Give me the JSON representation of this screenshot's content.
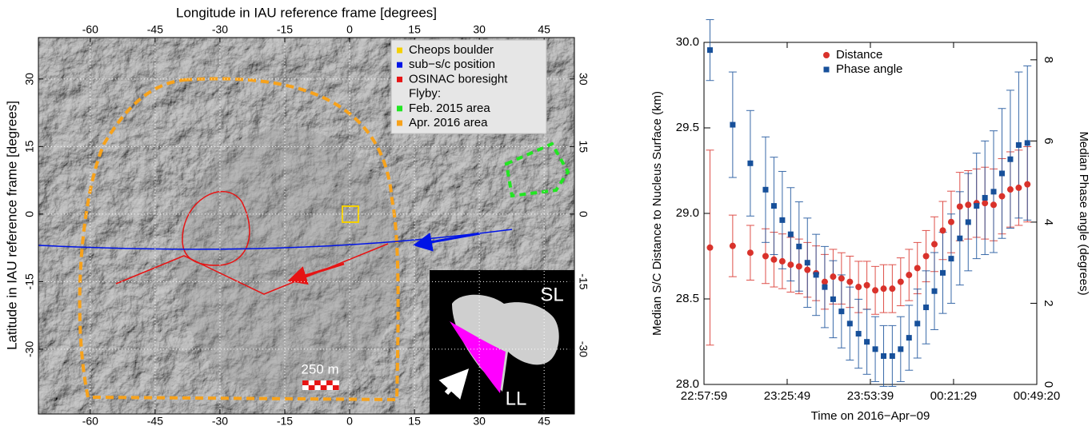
{
  "chart_data": [
    {
      "type": "map",
      "xlabel": "Longitude in IAU reference frame [degrees]",
      "ylabel": "Latitude in IAU reference frame [degrees]",
      "xlim": [
        -72,
        52
      ],
      "xticks": [
        -60,
        -45,
        -30,
        -15,
        0,
        15,
        30,
        45
      ],
      "ylim": [
        -44.4,
        39.2
      ],
      "yticks": [
        -30,
        -15,
        0,
        15,
        30
      ],
      "grid": true,
      "legend": [
        {
          "label": "Cheops boulder",
          "color": "#f4d000"
        },
        {
          "label": "sub−s/c position",
          "color": "#0014e6"
        },
        {
          "label": "OSINAC boresight",
          "color": "#e61414"
        },
        {
          "label": "Flyby:"
        },
        {
          "label": "Feb. 2015 area",
          "color": "#22e622"
        },
        {
          "label": "Apr.  2016 area",
          "color": "#f7a21b"
        }
      ],
      "annotations": [
        "250 m",
        "SL",
        "LL"
      ]
    },
    {
      "type": "errorbar",
      "xlabel": "Time on 2016−Apr−09",
      "ylabel": "Median S/C Distance to Nucleus Surface (km)",
      "y2label": "Median Phase angle (degrees)",
      "xlim": [
        0,
        111.35
      ],
      "xticks": [
        {
          "value": 0,
          "label": "22:57:59"
        },
        {
          "value": 27.83,
          "label": "23:25:49"
        },
        {
          "value": 55.67,
          "label": "23:53:39"
        },
        {
          "value": 83.5,
          "label": "00:21:29"
        },
        {
          "value": 111.35,
          "label": "00:49:20"
        }
      ],
      "ylim": [
        28.0,
        30.0
      ],
      "yticks": [
        {
          "value": 28,
          "label": "28.0"
        },
        28.5,
        {
          "value": 29,
          "label": "29.0"
        },
        29.5,
        {
          "value": 30,
          "label": "30.0"
        }
      ],
      "y2lim": [
        0,
        8.43
      ],
      "y2ticks": [
        0,
        2,
        4,
        6,
        8
      ],
      "legend_position": "upper center",
      "x": [
        2,
        9.6,
        15.5,
        20.6,
        23.4,
        26.2,
        29,
        31.8,
        34.6,
        37.5,
        40.4,
        43.2,
        46,
        48.8,
        51.7,
        54.5,
        57.3,
        60.1,
        63,
        65.8,
        68.6,
        71.4,
        74.3,
        77.1,
        79.9,
        82.7,
        85.6,
        88.4,
        91.2,
        94,
        96.9,
        99.7,
        102.5,
        105.3,
        108.2
      ],
      "series": [
        {
          "name": "Distance",
          "color": "#d9322b",
          "marker": "circle",
          "values": [
            28.8,
            28.81,
            28.77,
            28.75,
            28.73,
            28.72,
            28.7,
            28.69,
            28.67,
            28.65,
            28.6,
            28.63,
            28.62,
            28.6,
            28.57,
            28.58,
            28.55,
            28.56,
            28.56,
            28.6,
            28.64,
            28.68,
            28.75,
            28.82,
            28.9,
            28.95,
            29.04,
            29.05,
            29.06,
            29.06,
            29.05,
            29.1,
            29.14,
            29.15,
            29.17
          ],
          "errors": [
            0.57,
            0.18,
            0.16,
            0.16,
            0.16,
            0.16,
            0.16,
            0.16,
            0.16,
            0.16,
            0.16,
            0.16,
            0.15,
            0.15,
            0.15,
            0.14,
            0.14,
            0.14,
            0.14,
            0.14,
            0.15,
            0.15,
            0.15,
            0.16,
            0.17,
            0.18,
            0.2,
            0.2,
            0.2,
            0.21,
            0.21,
            0.22,
            0.22,
            0.22,
            0.22
          ]
        },
        {
          "name": "Phase angle",
          "color": "#17509a",
          "marker": "square",
          "axis": "y2",
          "values": [
            8.24,
            6.4,
            5.45,
            4.8,
            4.4,
            4.05,
            3.7,
            3.4,
            3.0,
            2.7,
            2.4,
            2.1,
            1.8,
            1.5,
            1.25,
            1.05,
            0.87,
            0.7,
            0.7,
            0.87,
            1.15,
            1.5,
            1.9,
            2.3,
            2.75,
            3.1,
            3.6,
            4.0,
            4.4,
            4.6,
            4.75,
            5.2,
            5.55,
            5.9,
            5.95
          ],
          "errors": [
            0.75,
            1.3,
            1.3,
            1.3,
            1.2,
            1.2,
            1.15,
            1.1,
            1.1,
            1.0,
            1.0,
            0.95,
            0.9,
            0.9,
            0.85,
            0.8,
            0.8,
            0.75,
            0.75,
            0.8,
            0.8,
            0.85,
            0.9,
            0.95,
            1.0,
            1.1,
            1.15,
            1.2,
            1.3,
            1.4,
            1.5,
            1.6,
            1.7,
            1.8,
            1.9
          ]
        }
      ]
    }
  ]
}
